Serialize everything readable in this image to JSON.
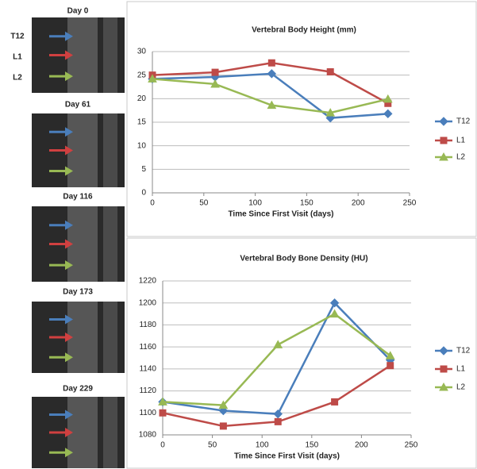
{
  "scans": {
    "levels": [
      "T12",
      "L1",
      "L2"
    ],
    "days": [
      "Day 0",
      "Day 61",
      "Day 116",
      "Day 173",
      "Day 229"
    ]
  },
  "chart_data": [
    {
      "type": "line",
      "title": "Vertebral Body Height (mm)",
      "x_label": "Time Since First Visit (days)",
      "x": [
        0,
        61,
        116,
        173,
        229
      ],
      "xlim": [
        0,
        250
      ],
      "xticks": [
        0,
        50,
        100,
        150,
        200,
        250
      ],
      "ylim": [
        0,
        30
      ],
      "yticks": [
        0,
        5,
        10,
        15,
        20,
        25,
        30
      ],
      "grid": true,
      "legend": "right",
      "series": [
        {
          "name": "T12",
          "color": "#4a7ebb",
          "marker": "diamond",
          "values": [
            24.2,
            24.6,
            25.3,
            15.9,
            16.8
          ]
        },
        {
          "name": "L1",
          "color": "#be4b48",
          "marker": "square",
          "values": [
            25,
            25.6,
            27.6,
            25.7,
            19
          ]
        },
        {
          "name": "L2",
          "color": "#98b954",
          "marker": "triangle",
          "values": [
            24.2,
            23.1,
            18.6,
            17,
            19.9
          ]
        }
      ]
    },
    {
      "type": "line",
      "title": "Vertebral Body Bone Density (HU)",
      "x_label": "Time Since First Visit (days)",
      "x": [
        0,
        61,
        116,
        173,
        229
      ],
      "xlim": [
        0,
        250
      ],
      "xticks": [
        0,
        50,
        100,
        150,
        200,
        250
      ],
      "ylim": [
        1080,
        1220
      ],
      "yticks": [
        1080,
        1100,
        1120,
        1140,
        1160,
        1180,
        1200,
        1220
      ],
      "grid": true,
      "legend": "right",
      "series": [
        {
          "name": "T12",
          "color": "#4a7ebb",
          "marker": "diamond",
          "values": [
            1110,
            1102,
            1099,
            1200,
            1148
          ]
        },
        {
          "name": "L1",
          "color": "#be4b48",
          "marker": "square",
          "values": [
            1100,
            1088,
            1092,
            1110,
            1143
          ]
        },
        {
          "name": "L2",
          "color": "#98b954",
          "marker": "triangle",
          "values": [
            1110,
            1107,
            1162,
            1190,
            1152
          ]
        }
      ]
    }
  ]
}
